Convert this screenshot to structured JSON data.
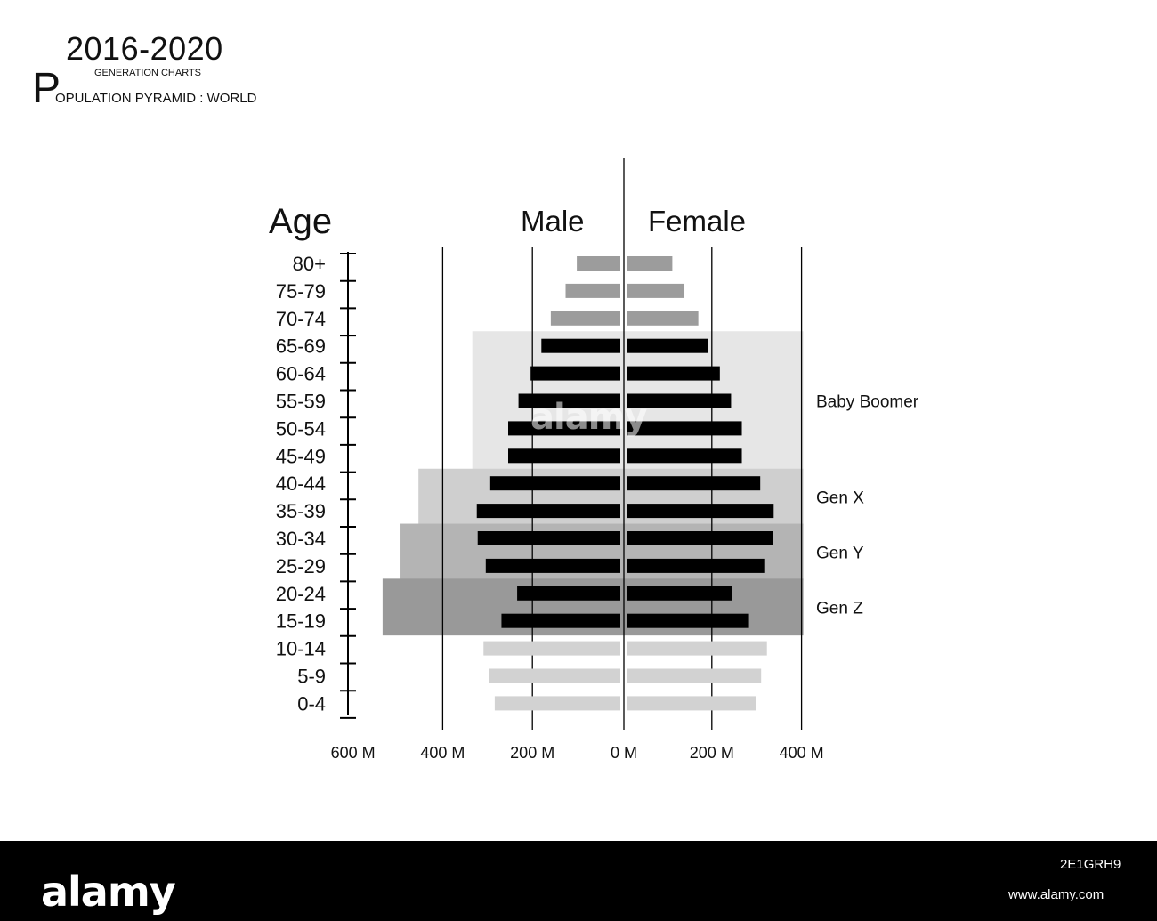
{
  "header": {
    "years": "2016-2020",
    "subtitle": "GENERATION CHARTS",
    "big_letter": "P",
    "title_rest": "OPULATION PYRAMID : WORLD"
  },
  "watermark": "alamy",
  "footer": {
    "logo": "alamy",
    "image_id": "2E1GRH9",
    "url": "www.alamy.com"
  },
  "chart_data": {
    "type": "bar",
    "orientation": "horizontal-pyramid",
    "age_axis_label": "Age",
    "male_label": "Male",
    "female_label": "Female",
    "x_ticks": [
      "600 M",
      "400 M",
      "200 M",
      "0 M",
      "200 M",
      "400 M"
    ],
    "x_unit": "M",
    "male_xlim": [
      0,
      600
    ],
    "female_xlim": [
      0,
      400
    ],
    "categories": [
      "80+",
      "75-79",
      "70-74",
      "65-69",
      "60-64",
      "55-59",
      "50-54",
      "45-49",
      "40-44",
      "35-39",
      "30-34",
      "25-29",
      "20-24",
      "15-19",
      "10-14",
      "5-9",
      "0-4"
    ],
    "series": [
      {
        "name": "Male",
        "values": [
          97,
          122,
          155,
          176,
          200,
          227,
          250,
          250,
          290,
          320,
          318,
          300,
          230,
          265,
          305,
          292,
          280
        ]
      },
      {
        "name": "Female",
        "values": [
          100,
          127,
          158,
          180,
          206,
          231,
          255,
          255,
          296,
          326,
          325,
          305,
          234,
          271,
          311,
          298,
          287
        ]
      }
    ],
    "generations": [
      {
        "name": "Baby Boomer",
        "ages": [
          "65-69",
          "45-49"
        ],
        "male_extent": 330,
        "color": "#e6e6e6",
        "bar_color": "#000000"
      },
      {
        "name": "Gen X",
        "ages": [
          "40-44",
          "35-39"
        ],
        "male_extent": 450,
        "color": "#cfcfcf",
        "bar_color": "#000000"
      },
      {
        "name": "Gen Y",
        "ages": [
          "30-34",
          "25-29"
        ],
        "male_extent": 490,
        "color": "#b4b4b4",
        "bar_color": "#000000"
      },
      {
        "name": "Gen Z",
        "ages": [
          "20-24",
          "15-19"
        ],
        "male_extent": 530,
        "color": "#999999",
        "bar_color": "#000000"
      }
    ],
    "other_bar_colors": {
      "older": "#9c9c9c",
      "younger": "#d2d2d2"
    },
    "female_extent_of_bands": 400
  }
}
